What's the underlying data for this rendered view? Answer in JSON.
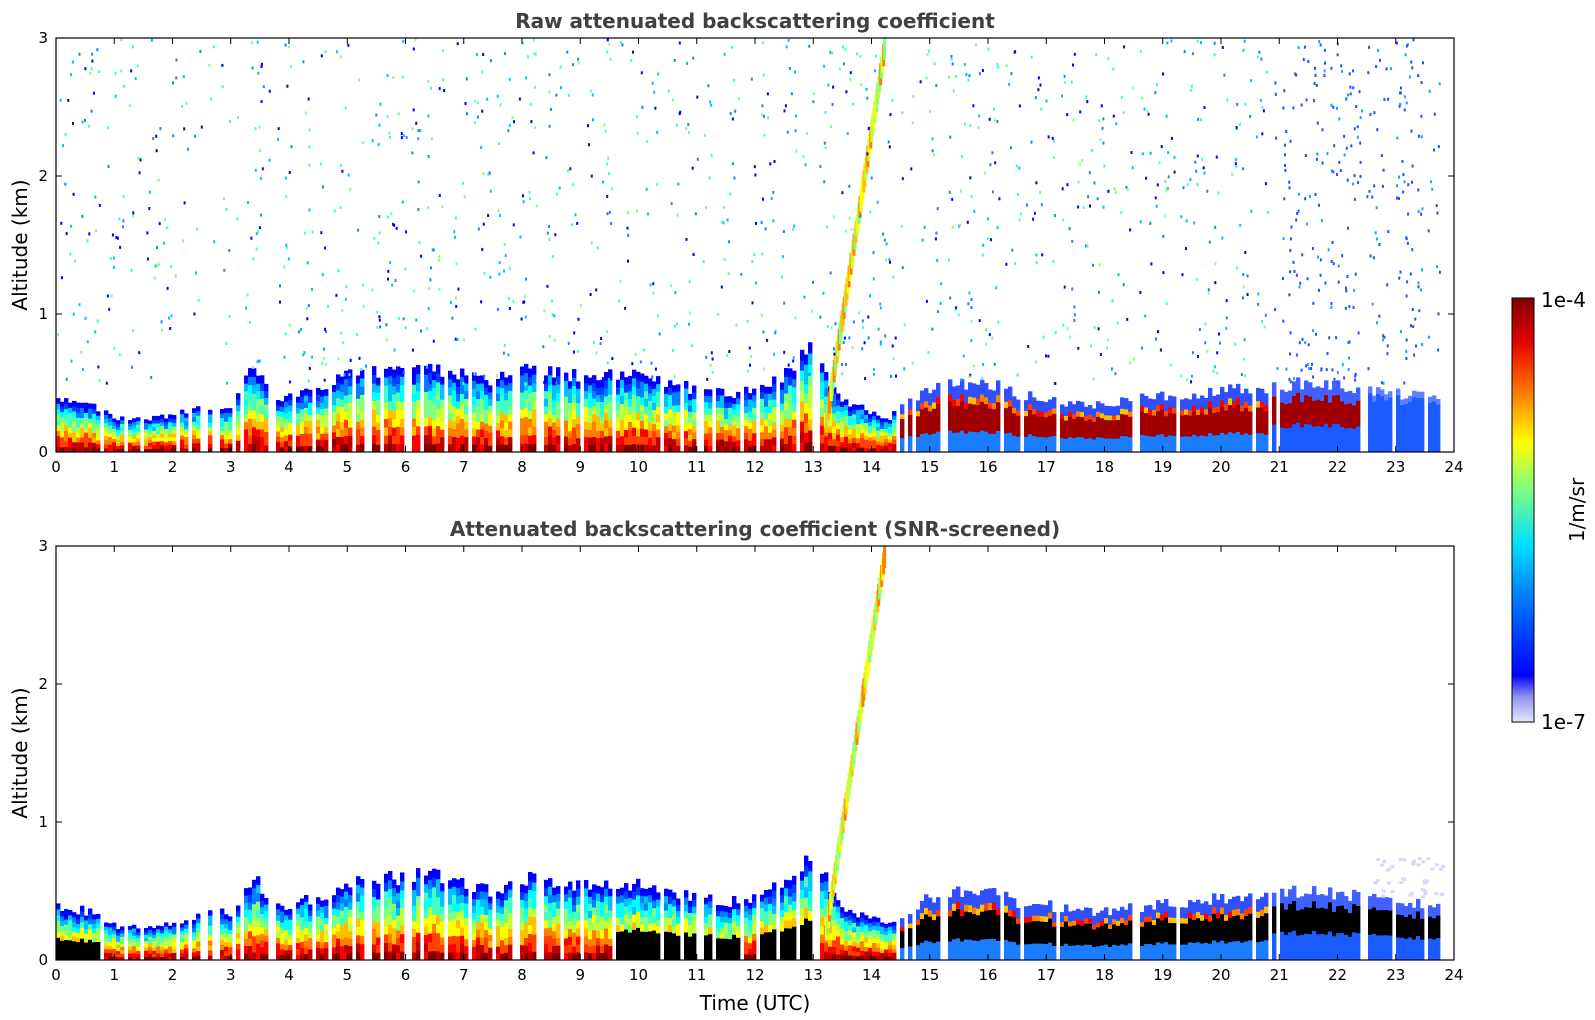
{
  "chart_data": [
    {
      "type": "heatmap",
      "title": "Raw attenuated backscattering coefficient",
      "xlabel": "",
      "ylabel": "Altitude (km)",
      "xlim": [
        0,
        24
      ],
      "ylim": [
        0,
        3
      ],
      "x_ticks": [
        "0",
        "1",
        "2",
        "3",
        "4",
        "5",
        "6",
        "7",
        "8",
        "9",
        "10",
        "11",
        "12",
        "13",
        "14",
        "15",
        "16",
        "17",
        "18",
        "19",
        "20",
        "21",
        "22",
        "23",
        "24"
      ],
      "y_ticks": [
        "0",
        "1",
        "2",
        "3"
      ],
      "layer_top_km": [
        [
          0,
          0.38
        ],
        [
          0.5,
          0.36
        ],
        [
          1,
          0.25
        ],
        [
          1.5,
          0.24
        ],
        [
          2,
          0.26
        ],
        [
          2.5,
          0.33
        ],
        [
          3,
          0.35
        ],
        [
          3.4,
          0.6
        ],
        [
          3.7,
          0.4
        ],
        [
          4,
          0.4
        ],
        [
          4.5,
          0.45
        ],
        [
          5,
          0.55
        ],
        [
          5.5,
          0.58
        ],
        [
          6,
          0.6
        ],
        [
          6.5,
          0.62
        ],
        [
          7,
          0.55
        ],
        [
          7.5,
          0.5
        ],
        [
          8,
          0.6
        ],
        [
          8.5,
          0.58
        ],
        [
          9,
          0.55
        ],
        [
          9.5,
          0.55
        ],
        [
          10,
          0.55
        ],
        [
          10.5,
          0.5
        ],
        [
          11,
          0.45
        ],
        [
          11.5,
          0.42
        ],
        [
          12,
          0.45
        ],
        [
          12.5,
          0.55
        ],
        [
          13,
          0.8
        ],
        [
          13.3,
          0.5
        ],
        [
          13.6,
          0.35
        ],
        [
          14,
          0.3
        ],
        [
          14.3,
          0.25
        ],
        [
          14.6,
          0.35
        ],
        [
          15,
          0.45
        ],
        [
          15.5,
          0.5
        ],
        [
          16,
          0.5
        ],
        [
          16.5,
          0.42
        ],
        [
          17,
          0.4
        ],
        [
          17.5,
          0.35
        ],
        [
          18,
          0.35
        ],
        [
          18.5,
          0.38
        ],
        [
          19,
          0.4
        ],
        [
          19.5,
          0.42
        ],
        [
          20,
          0.45
        ],
        [
          20.5,
          0.45
        ],
        [
          21,
          0.48
        ],
        [
          21.5,
          0.5
        ],
        [
          22,
          0.48
        ],
        [
          22.5,
          0.45
        ],
        [
          23,
          0.42
        ],
        [
          23.5,
          0.4
        ],
        [
          23.8,
          0.4
        ]
      ],
      "gaps_utc": [
        0.8,
        1.2,
        1.5,
        2.1,
        2.3,
        2.55,
        2.75,
        3.05,
        3.2,
        3.7,
        4.1,
        4.45,
        4.7,
        5.1,
        5.35,
        5.6,
        6.05,
        6.3,
        6.7,
        7.1,
        7.5,
        7.9,
        8.3,
        8.7,
        9.05,
        9.6,
        10.4,
        10.75,
        11.05,
        11.3,
        11.8,
        12.05,
        12.4,
        12.75,
        13.05,
        14.45,
        14.6,
        14.75,
        15.25,
        16.25,
        16.6,
        17.2,
        18.55,
        19.25,
        20.55,
        20.85,
        21.0,
        22.45,
        22.95,
        23.5,
        23.8
      ],
      "plume": {
        "start_utc": 13.2,
        "end_utc": 14.2,
        "top_km": 3.0
      }
    },
    {
      "type": "heatmap",
      "title": "Attenuated backscattering coefficient (SNR-screened)",
      "xlabel": "Time (UTC)",
      "ylabel": "Altitude (km)",
      "xlim": [
        0,
        24
      ],
      "ylim": [
        0,
        3
      ],
      "x_ticks": [
        "0",
        "1",
        "2",
        "3",
        "4",
        "5",
        "6",
        "7",
        "8",
        "9",
        "10",
        "11",
        "12",
        "13",
        "14",
        "15",
        "16",
        "17",
        "18",
        "19",
        "20",
        "21",
        "22",
        "23",
        "24"
      ],
      "y_ticks": [
        "0",
        "1",
        "2",
        "3"
      ],
      "saturated_color": "#000000"
    }
  ],
  "colorbar": {
    "label": "1/m/sr",
    "max_label": "1e-4",
    "min_label": "1e-7",
    "colormap": "jet"
  },
  "colors": {
    "axis": "#000000",
    "title": "#404040",
    "background": "#ffffff"
  }
}
